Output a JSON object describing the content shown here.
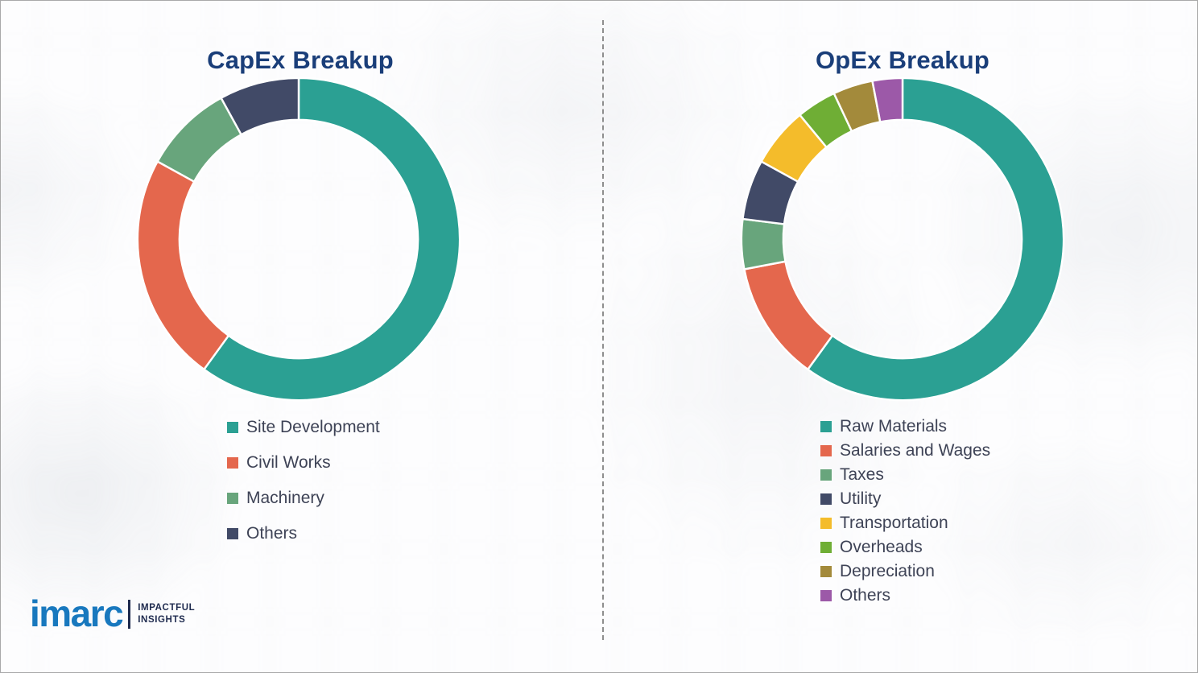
{
  "logo": {
    "brand": "imarc",
    "tagline": [
      "IMPACTFUL",
      "INSIGHTS"
    ]
  },
  "colors": {
    "title": "#1a3e79",
    "legend_text": "#3e4356",
    "brand_blue": "#1878be"
  },
  "chart_data": [
    {
      "type": "pie",
      "subtype": "donut",
      "title": "CapEx Breakup",
      "labels": [
        "Site Development",
        "Civil Works",
        "Machinery",
        "Others"
      ],
      "values": [
        60,
        23,
        9,
        8
      ],
      "colors": [
        "#2ba093",
        "#e4674d",
        "#68a57c",
        "#414a67"
      ],
      "start_angle_deg": 0,
      "direction": "clockwise",
      "legend_position": "below-left",
      "data_labels_shown": false
    },
    {
      "type": "pie",
      "subtype": "donut",
      "title": "OpEx Breakup",
      "labels": [
        "Raw Materials",
        "Salaries and Wages",
        "Taxes",
        "Utility",
        "Transportation",
        "Overheads",
        "Depreciation",
        "Others"
      ],
      "values": [
        60,
        12,
        5,
        6,
        6,
        4,
        4,
        3
      ],
      "colors": [
        "#2ba093",
        "#e4674d",
        "#68a57c",
        "#414a67",
        "#f4bc2b",
        "#6fae35",
        "#a38a3b",
        "#9c59a8"
      ],
      "start_angle_deg": 0,
      "direction": "clockwise",
      "legend_position": "below-left",
      "data_labels_shown": false
    }
  ]
}
